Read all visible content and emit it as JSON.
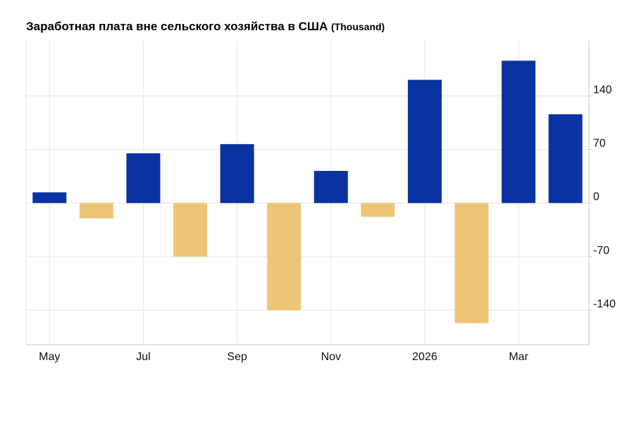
{
  "chart_data": {
    "type": "bar",
    "title": "Заработная плата вне сельского хозяйства в США",
    "unit": "(Thousand)",
    "xlabel": "",
    "ylabel": "",
    "x_tick_labels": [
      "May",
      "Jul",
      "Sep",
      "Nov",
      "2026",
      "Mar"
    ],
    "y_ticks": [
      140,
      70,
      0,
      -70,
      -140
    ],
    "ylim": [
      -185,
      212
    ],
    "grid": true,
    "values": [
      14,
      -20,
      65,
      -70,
      77,
      -140,
      42,
      -18,
      161,
      -157,
      186,
      116
    ],
    "colors": {
      "positive": "#0a32a0",
      "negative": "#ecc576",
      "grid": "#e6e6e6",
      "axis": "#c8c8c8"
    }
  }
}
